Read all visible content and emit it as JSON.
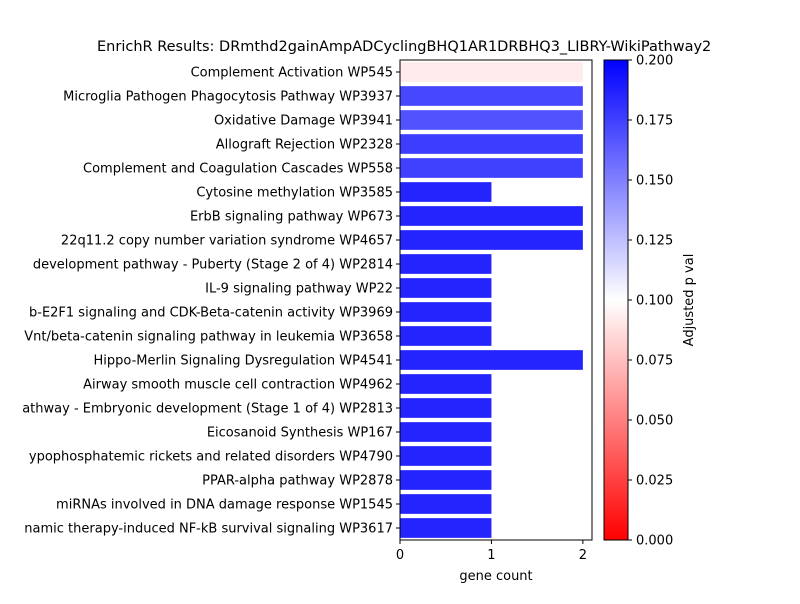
{
  "chart_data": {
    "type": "bar",
    "orientation": "horizontal",
    "title": "EnrichR Results: DRmthd2gainAmpADCyclingBHQ1AR1DRBHQ3_LIBRY-WikiPathway2",
    "xlabel": "gene count",
    "ylabel": "",
    "xlim": [
      0,
      2.1
    ],
    "x_ticks": [
      0,
      1,
      2
    ],
    "categories": [
      "Complement Activation WP545",
      "Microglia Pathogen Phagocytosis Pathway WP3937",
      "Oxidative Damage WP3941",
      "Allograft Rejection WP2328",
      "Complement and Coagulation Cascades WP558",
      "Cytosine methylation WP3585",
      "ErbB signaling pathway WP673",
      "22q11.2 copy number variation syndrome WP4657",
      "development pathway - Puberty (Stage 2 of 4) WP2814",
      "IL-9 signaling pathway WP22",
      "b-E2F1 signaling and CDK-Beta-catenin activity WP3969",
      "Vnt/beta-catenin signaling pathway in leukemia WP3658",
      "Hippo-Merlin Signaling Dysregulation WP4541",
      "Airway smooth muscle cell contraction WP4962",
      "athway - Embryonic development (Stage 1 of 4) WP2813",
      "Eicosanoid Synthesis WP167",
      "ypophosphatemic rickets and related disorders WP4790",
      "PPAR-alpha pathway WP2878",
      "miRNAs involved in DNA damage response WP1545",
      "namic therapy-induced NF-kB survival signaling WP3617"
    ],
    "values": [
      2,
      2,
      2,
      2,
      2,
      1,
      2,
      2,
      1,
      1,
      1,
      1,
      2,
      1,
      1,
      1,
      1,
      1,
      1,
      1
    ],
    "color_values": [
      0.092,
      0.172,
      0.168,
      0.176,
      0.175,
      0.186,
      0.186,
      0.186,
      0.186,
      0.186,
      0.186,
      0.186,
      0.186,
      0.186,
      0.186,
      0.186,
      0.186,
      0.186,
      0.186,
      0.186
    ],
    "colorbar": {
      "label": "Adjusted p val",
      "range": [
        0,
        0.2
      ],
      "ticks": [
        "0.000",
        "0.025",
        "0.050",
        "0.075",
        "0.100",
        "0.125",
        "0.150",
        "0.175",
        "0.200"
      ],
      "colormap": [
        "#ff0000",
        "#ffffff",
        "#0000ff"
      ]
    },
    "grid": false,
    "legend": false
  }
}
